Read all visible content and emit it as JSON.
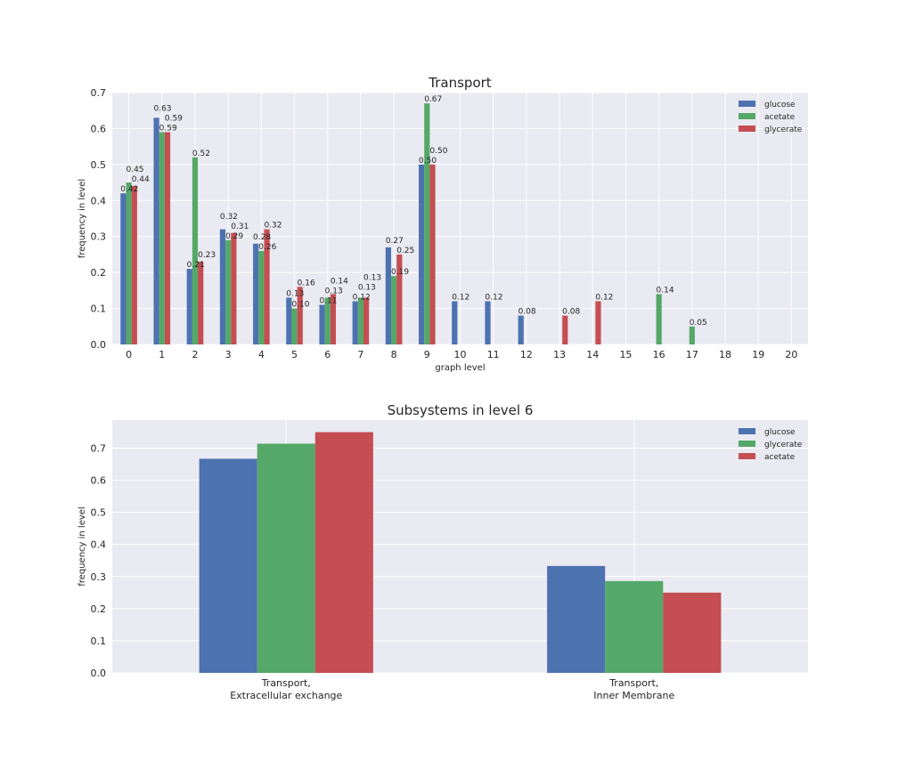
{
  "colors": {
    "glucose": "#4C72B0",
    "acetate": "#55A868",
    "glycerate": "#C44E52",
    "background": "#EAEAF2",
    "grid": "#FFFFFF"
  },
  "chart_data": [
    {
      "type": "bar",
      "title": "Transport",
      "xlabel": "graph level",
      "ylabel": "frequency in level",
      "ylim": [
        0,
        0.7
      ],
      "yticks": [
        "0.0",
        "0.1",
        "0.2",
        "0.3",
        "0.4",
        "0.5",
        "0.6",
        "0.7"
      ],
      "categories": [
        "0",
        "1",
        "2",
        "3",
        "4",
        "5",
        "6",
        "7",
        "8",
        "9",
        "10",
        "11",
        "12",
        "13",
        "14",
        "15",
        "16",
        "17",
        "18",
        "19",
        "20"
      ],
      "legend_position": "top-right",
      "grid": true,
      "series": [
        {
          "name": "glucose",
          "color_key": "glucose",
          "values": [
            0.42,
            0.63,
            0.21,
            0.32,
            0.28,
            0.13,
            0.11,
            0.12,
            0.27,
            0.5,
            0.12,
            0.12,
            0.08,
            0,
            0,
            0,
            0,
            0,
            0,
            0,
            0
          ]
        },
        {
          "name": "acetate",
          "color_key": "acetate",
          "values": [
            0.45,
            0.59,
            0.52,
            0.29,
            0.26,
            0.1,
            0.13,
            0.13,
            0.19,
            0.67,
            0,
            0,
            0,
            0,
            0,
            0,
            0.14,
            0.05,
            0,
            0,
            0
          ]
        },
        {
          "name": "glycerate",
          "color_key": "glycerate",
          "values": [
            0.44,
            0.59,
            0.23,
            0.31,
            0.32,
            0.16,
            0.14,
            0.13,
            0.25,
            0.5,
            0,
            0,
            0,
            0.08,
            0.12,
            0,
            0,
            0,
            0,
            0,
            0
          ]
        }
      ],
      "data_labels": true
    },
    {
      "type": "bar",
      "title": "Subsystems in level 6",
      "xlabel": "",
      "ylabel": "frequency in level",
      "ylim": [
        0,
        0.79
      ],
      "yticks": [
        "0.0",
        "0.1",
        "0.2",
        "0.3",
        "0.4",
        "0.5",
        "0.6",
        "0.7"
      ],
      "categories": [
        "Transport, Extracellular exchange",
        "Transport, Inner Membrane"
      ],
      "legend_position": "top-right",
      "grid": true,
      "series": [
        {
          "name": "glucose",
          "color_key": "glucose",
          "values": [
            0.667,
            0.333
          ]
        },
        {
          "name": "glycerate",
          "color_key": "acetate",
          "values": [
            0.714,
            0.286
          ]
        },
        {
          "name": "acetate",
          "color_key": "glycerate",
          "values": [
            0.75,
            0.25
          ]
        }
      ],
      "data_labels": false
    }
  ]
}
